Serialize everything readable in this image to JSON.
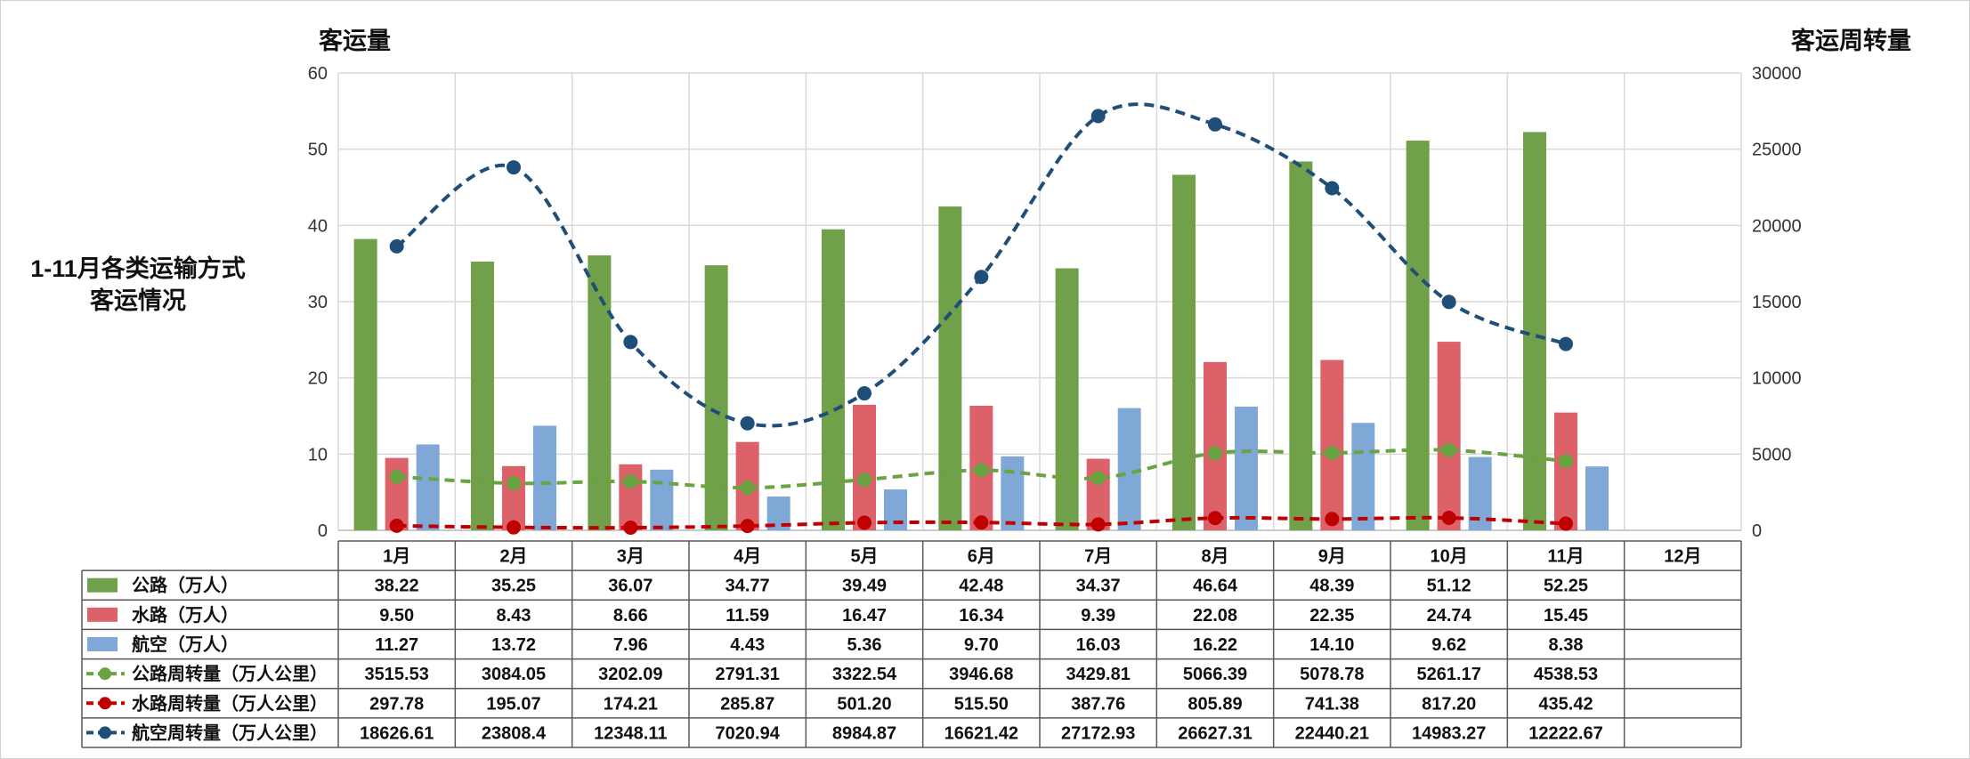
{
  "chart_data": {
    "type": "bar",
    "title": "1-11月各类运输方式客运情况",
    "y_left_label": "客运量",
    "y_right_label": "客运周转量",
    "ylim_left": [
      0,
      60
    ],
    "ylim_right": [
      0,
      30000
    ],
    "yticks_left": [
      "0",
      "10",
      "20",
      "30",
      "40",
      "50",
      "60"
    ],
    "yticks_right": [
      "0",
      "5000",
      "10000",
      "15000",
      "20000",
      "25000",
      "30000"
    ],
    "grid": true,
    "legend_placement": "data-table",
    "categories": [
      "1月",
      "2月",
      "3月",
      "4月",
      "5月",
      "6月",
      "7月",
      "8月",
      "9月",
      "10月",
      "11月",
      "12月"
    ],
    "bar_series": [
      {
        "name": "公路（万人）",
        "color": "#70a04a",
        "values": [
          38.22,
          35.25,
          36.07,
          34.77,
          39.49,
          42.48,
          34.37,
          46.64,
          48.39,
          51.12,
          52.25,
          null
        ],
        "labels": [
          "38.22",
          "35.25",
          "36.07",
          "34.77",
          "39.49",
          "42.48",
          "34.37",
          "46.64",
          "48.39",
          "51.12",
          "52.25",
          ""
        ]
      },
      {
        "name": "水路（万人）",
        "color": "#dc6168",
        "values": [
          9.5,
          8.43,
          8.66,
          11.59,
          16.47,
          16.34,
          9.39,
          22.08,
          22.35,
          24.74,
          15.45,
          null
        ],
        "labels": [
          "9.50",
          "8.43",
          "8.66",
          "11.59",
          "16.47",
          "16.34",
          "9.39",
          "22.08",
          "22.35",
          "24.74",
          "15.45",
          ""
        ]
      },
      {
        "name": "航空（万人）",
        "color": "#7fa8d6",
        "values": [
          11.27,
          13.72,
          7.96,
          4.43,
          5.36,
          9.7,
          16.03,
          16.22,
          14.1,
          9.62,
          8.38,
          null
        ],
        "labels": [
          "11.27",
          "13.72",
          "7.96",
          "4.43",
          "5.36",
          "9.70",
          "16.03",
          "16.22",
          "14.10",
          "9.62",
          "8.38",
          ""
        ]
      }
    ],
    "line_series": [
      {
        "name": "公路周转量（万人公里）",
        "color": "#6aa342",
        "values": [
          3515.53,
          3084.05,
          3202.09,
          2791.31,
          3322.54,
          3946.68,
          3429.81,
          5066.39,
          5078.78,
          5261.17,
          4538.53,
          null
        ],
        "labels": [
          "3515.53",
          "3084.05",
          "3202.09",
          "2791.31",
          "3322.54",
          "3946.68",
          "3429.81",
          "5066.39",
          "5078.78",
          "5261.17",
          "4538.53",
          ""
        ]
      },
      {
        "name": "水路周转量（万人公里）",
        "color": "#c00000",
        "values": [
          297.78,
          195.07,
          174.21,
          285.87,
          501.2,
          515.5,
          387.76,
          805.89,
          741.38,
          817.2,
          435.42,
          null
        ],
        "labels": [
          "297.78",
          "195.07",
          "174.21",
          "285.87",
          "501.20",
          "515.50",
          "387.76",
          "805.89",
          "741.38",
          "817.20",
          "435.42",
          ""
        ]
      },
      {
        "name": "航空周转量（万人公里）",
        "color": "#1f4e79",
        "values": [
          18626.61,
          23808.4,
          12348.11,
          7020.94,
          8984.87,
          16621.42,
          27172.93,
          26627.31,
          22440.21,
          14983.27,
          12222.67,
          null
        ],
        "labels": [
          "18626.61",
          "23808.4",
          "12348.11",
          "7020.94",
          "8984.87",
          "16621.42",
          "27172.93",
          "26627.31",
          "22440.21",
          "14983.27",
          "12222.67",
          ""
        ]
      }
    ]
  }
}
